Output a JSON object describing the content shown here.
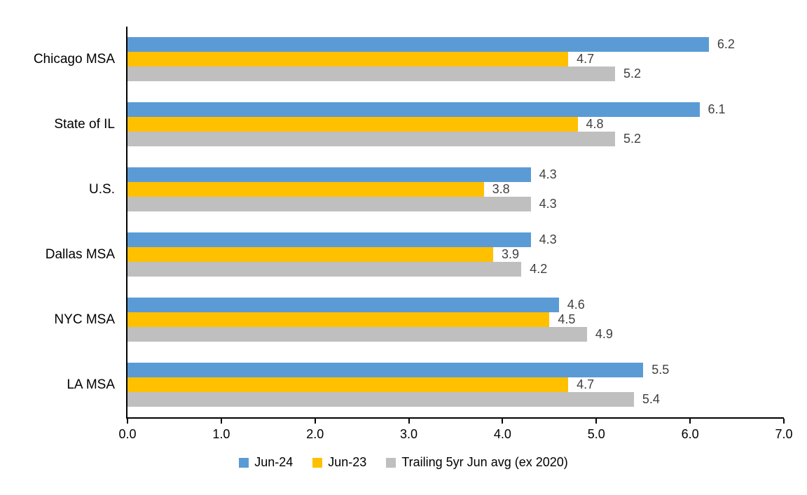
{
  "chart_data": {
    "type": "bar",
    "orientation": "horizontal",
    "title": "",
    "xlabel": "",
    "ylabel": "",
    "categories": [
      "Chicago MSA",
      "State of IL",
      "U.S.",
      "Dallas MSA",
      "NYC MSA",
      "LA MSA"
    ],
    "series": [
      {
        "name": "Jun-24",
        "color": "#5B9BD5",
        "values": [
          6.2,
          6.1,
          4.3,
          4.3,
          4.6,
          5.5
        ]
      },
      {
        "name": "Jun-23",
        "color": "#FFC000",
        "values": [
          4.7,
          4.8,
          3.8,
          3.9,
          4.5,
          4.7
        ]
      },
      {
        "name": "Trailing 5yr Jun avg (ex 2020)",
        "color": "#BFBFBF",
        "values": [
          5.2,
          5.2,
          4.3,
          4.2,
          4.9,
          5.4
        ]
      }
    ],
    "xlim": [
      0,
      7
    ],
    "xticks": [
      "0.0",
      "1.0",
      "2.0",
      "3.0",
      "4.0",
      "5.0",
      "6.0",
      "7.0"
    ],
    "grid": false,
    "data_labels": true,
    "legend_position": "bottom",
    "colors": {
      "axis": "#000000",
      "data_label": "#404040",
      "text": "#000000",
      "background": "#ffffff"
    }
  }
}
